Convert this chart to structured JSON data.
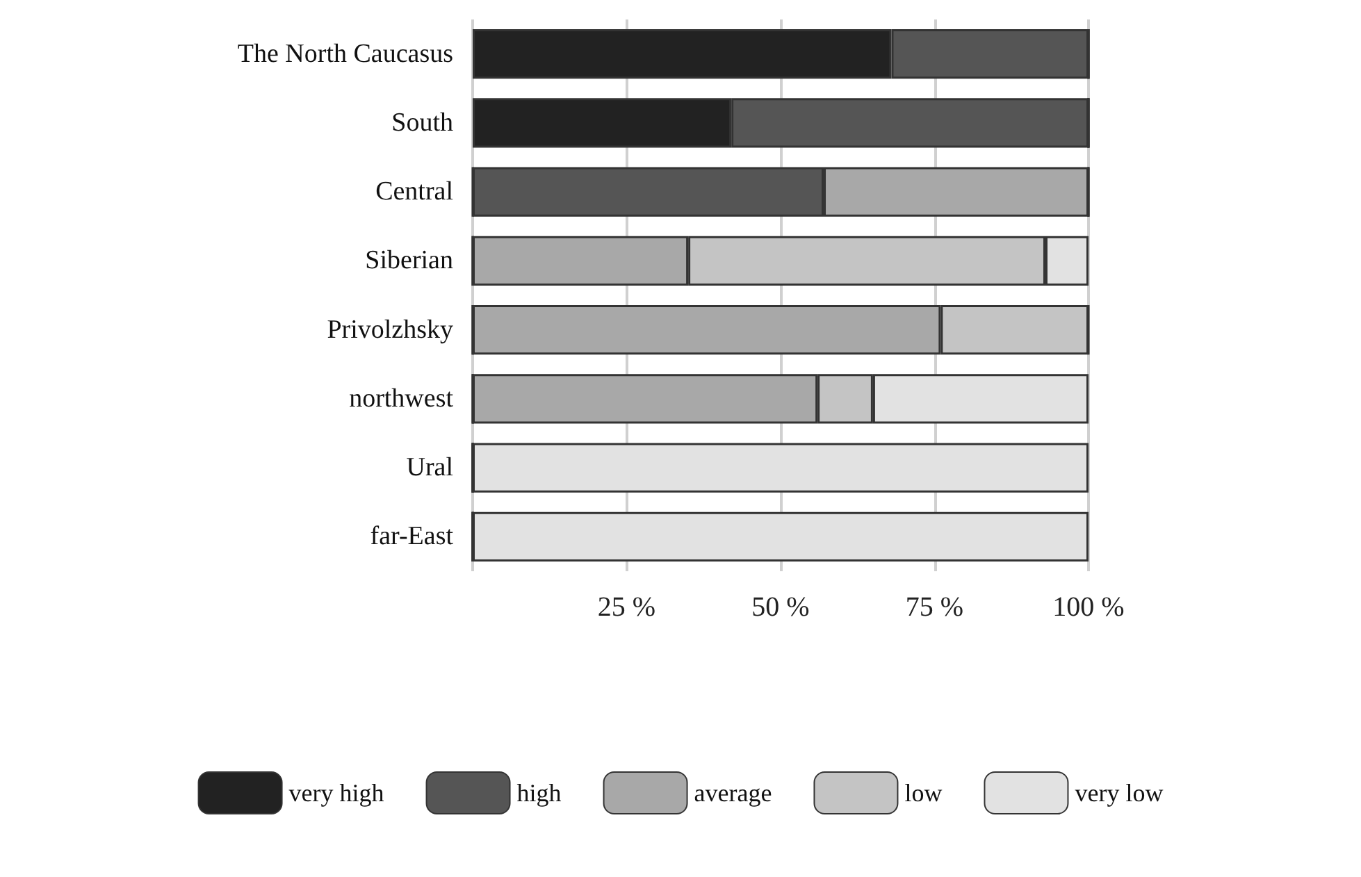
{
  "chart_data": {
    "type": "bar",
    "orientation": "horizontal",
    "stacked": true,
    "categories": [
      "The North Caucasus",
      "South",
      "Central",
      "Siberian",
      "Privolzhsky",
      "northwest",
      "Ural",
      "far-East"
    ],
    "series": [
      {
        "name": "very high",
        "color": "#222222",
        "values": [
          68,
          42,
          0,
          0,
          0,
          0,
          0,
          0
        ]
      },
      {
        "name": "high",
        "color": "#555555",
        "values": [
          32,
          58,
          57,
          0,
          0,
          0,
          0,
          0
        ]
      },
      {
        "name": "average",
        "color": "#a8a8a8",
        "values": [
          0,
          0,
          43,
          35,
          76,
          56,
          0,
          0
        ]
      },
      {
        "name": "low",
        "color": "#c4c4c4",
        "values": [
          0,
          0,
          0,
          58,
          24,
          9,
          0,
          0
        ]
      },
      {
        "name": "very low",
        "color": "#e2e2e2",
        "values": [
          0,
          0,
          0,
          7,
          0,
          35,
          100,
          100
        ]
      }
    ],
    "xlim": [
      0,
      100
    ],
    "xticks": [
      {
        "value": 0,
        "label": null
      },
      {
        "value": 25,
        "label": "25 %"
      },
      {
        "value": 50,
        "label": "50 %"
      },
      {
        "value": 75,
        "label": "75 %"
      },
      {
        "value": 100,
        "label": "100 %"
      }
    ],
    "grid": "x",
    "legend": "bottom"
  }
}
